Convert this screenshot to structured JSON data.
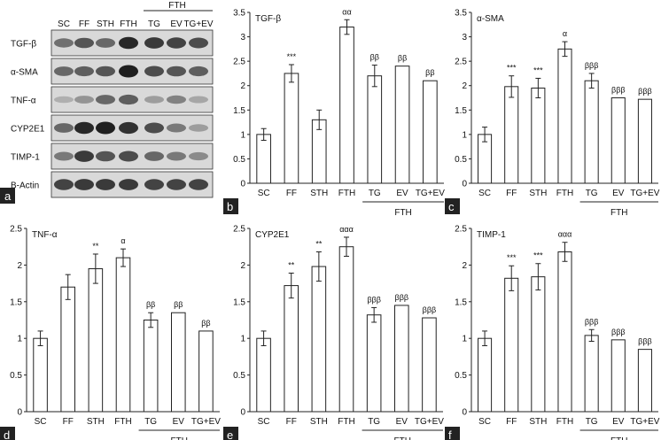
{
  "blot": {
    "panel_letter": "a",
    "group_label": "FTH",
    "lanes": [
      "SC",
      "FF",
      "STH",
      "FTH",
      "TG",
      "EV",
      "TG+EV"
    ],
    "bands": [
      {
        "name": "TGF-β",
        "intensity": [
          0.55,
          0.7,
          0.6,
          0.95,
          0.85,
          0.8,
          0.75
        ]
      },
      {
        "name": "α-SMA",
        "intensity": [
          0.6,
          0.65,
          0.7,
          1.0,
          0.75,
          0.7,
          0.65
        ]
      },
      {
        "name": "TNF-α",
        "intensity": [
          0.2,
          0.35,
          0.6,
          0.65,
          0.3,
          0.45,
          0.25
        ]
      },
      {
        "name": "CYP2E1",
        "intensity": [
          0.6,
          0.95,
          1.0,
          0.9,
          0.75,
          0.5,
          0.3
        ]
      },
      {
        "name": "TIMP-1",
        "intensity": [
          0.5,
          0.85,
          0.7,
          0.75,
          0.6,
          0.5,
          0.4
        ]
      },
      {
        "name": "B-Actin",
        "intensity": [
          0.8,
          0.85,
          0.85,
          0.85,
          0.8,
          0.8,
          0.8
        ]
      }
    ]
  },
  "chart_data": [
    {
      "panel": "b",
      "type": "bar",
      "title": "TGF-β",
      "categories": [
        "SC",
        "FF",
        "STH",
        "FTH",
        "TG",
        "EV",
        "TG+EV"
      ],
      "values": [
        1.0,
        2.25,
        1.3,
        3.2,
        2.2,
        2.4,
        2.1
      ],
      "errors": [
        0.12,
        0.18,
        0.2,
        0.15,
        0.22,
        0,
        0
      ],
      "annotations": [
        "",
        "***",
        "",
        "αα",
        "ββ",
        "ββ",
        "ββ"
      ],
      "ylim": [
        0,
        3.5
      ],
      "yticks": [
        0,
        0.5,
        1,
        1.5,
        2,
        2.5,
        3,
        3.5
      ],
      "group_label": "FTH"
    },
    {
      "panel": "c",
      "type": "bar",
      "title": "α-SMA",
      "categories": [
        "SC",
        "FF",
        "STH",
        "FTH",
        "TG",
        "EV",
        "TG+EV"
      ],
      "values": [
        1.0,
        1.98,
        1.95,
        2.75,
        2.1,
        1.75,
        1.72
      ],
      "errors": [
        0.15,
        0.22,
        0.2,
        0.15,
        0.15,
        0,
        0
      ],
      "annotations": [
        "",
        "***",
        "***",
        "α",
        "βββ",
        "βββ",
        "βββ"
      ],
      "ylim": [
        0,
        3.5
      ],
      "yticks": [
        0,
        0.5,
        1,
        1.5,
        2,
        2.5,
        3,
        3.5
      ],
      "group_label": "FTH"
    },
    {
      "panel": "d",
      "type": "bar",
      "title": "TNF-α",
      "categories": [
        "SC",
        "FF",
        "STH",
        "FTH",
        "TG",
        "EV",
        "TG+EV"
      ],
      "values": [
        1.0,
        1.7,
        1.95,
        2.1,
        1.25,
        1.35,
        1.1
      ],
      "errors": [
        0.1,
        0.17,
        0.2,
        0.12,
        0.1,
        0,
        0
      ],
      "annotations": [
        "",
        "",
        "**",
        "α",
        "ββ",
        "ββ",
        "ββ"
      ],
      "ylim": [
        0,
        2.5
      ],
      "yticks": [
        0,
        0.5,
        1,
        1.5,
        2,
        2.5
      ],
      "group_label": "FTH"
    },
    {
      "panel": "e",
      "type": "bar",
      "title": "CYP2E1",
      "categories": [
        "SC",
        "FF",
        "STH",
        "FTH",
        "TG",
        "EV",
        "TG+EV"
      ],
      "values": [
        1.0,
        1.72,
        1.98,
        2.25,
        1.32,
        1.45,
        1.28
      ],
      "errors": [
        0.1,
        0.17,
        0.2,
        0.13,
        0.1,
        0,
        0
      ],
      "annotations": [
        "",
        "**",
        "**",
        "ααα",
        "βββ",
        "βββ",
        "βββ"
      ],
      "ylim": [
        0,
        2.5
      ],
      "yticks": [
        0,
        0.5,
        1,
        1.5,
        2,
        2.5
      ],
      "group_label": "FTH"
    },
    {
      "panel": "f",
      "type": "bar",
      "title": "TIMP-1",
      "categories": [
        "SC",
        "FF",
        "STH",
        "FTH",
        "TG",
        "EV",
        "TG+EV"
      ],
      "values": [
        1.0,
        1.82,
        1.84,
        2.18,
        1.04,
        0.98,
        0.85
      ],
      "errors": [
        0.1,
        0.17,
        0.18,
        0.13,
        0.08,
        0,
        0
      ],
      "annotations": [
        "",
        "***",
        "***",
        "ααα",
        "βββ",
        "βββ",
        "βββ"
      ],
      "ylim": [
        0,
        2.5
      ],
      "yticks": [
        0,
        0.5,
        1,
        1.5,
        2,
        2.5
      ],
      "group_label": "FTH"
    }
  ]
}
